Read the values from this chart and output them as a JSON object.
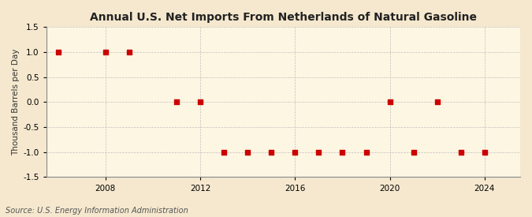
{
  "title": "Annual U.S. Net Imports From Netherlands of Natural Gasoline",
  "ylabel": "Thousand Barrels per Day",
  "source": "Source: U.S. Energy Information Administration",
  "background_color": "#f5e8ce",
  "plot_background_color": "#fdf6e3",
  "grid_color": "#aaaaaa",
  "data_color": "#cc0000",
  "years": [
    2006,
    2008,
    2009,
    2011,
    2012,
    2013,
    2014,
    2015,
    2016,
    2017,
    2018,
    2019,
    2020,
    2021,
    2022,
    2023,
    2024
  ],
  "values": [
    1.0,
    1.0,
    1.0,
    0.0,
    0.0,
    -1.0,
    -1.0,
    -1.0,
    -1.0,
    -1.0,
    -1.0,
    -1.0,
    0.0,
    -1.0,
    0.0,
    -1.0,
    -1.0
  ],
  "ylim": [
    -1.5,
    1.5
  ],
  "yticks": [
    -1.5,
    -1.0,
    -0.5,
    0.0,
    0.5,
    1.0,
    1.5
  ],
  "xticks": [
    2008,
    2012,
    2016,
    2020,
    2024
  ],
  "xlim": [
    2005.5,
    2025.5
  ],
  "marker_size": 22,
  "title_fontsize": 10,
  "label_fontsize": 7.5,
  "tick_fontsize": 7.5,
  "source_fontsize": 7
}
